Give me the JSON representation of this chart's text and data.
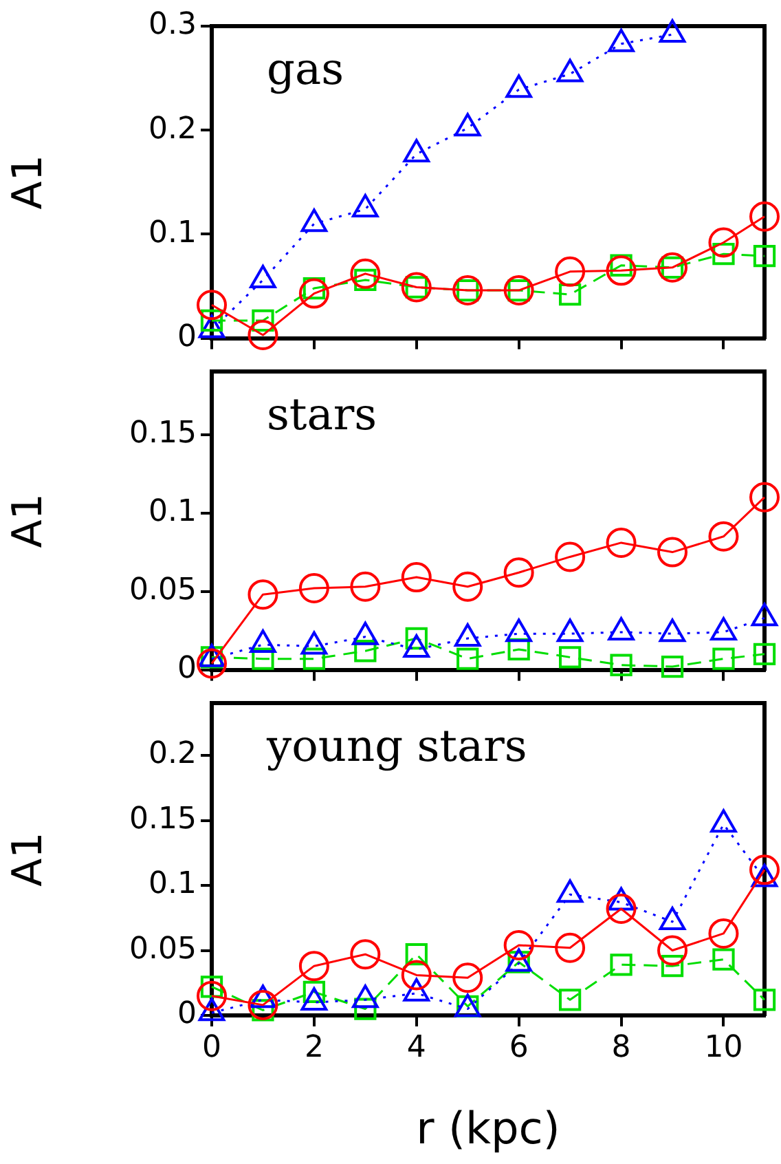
{
  "chart_data": [
    {
      "type": "line",
      "ylabel": "A1",
      "annotations": [
        "gas"
      ],
      "x": [
        0,
        1,
        2,
        3,
        4,
        5,
        6,
        7,
        8,
        9,
        10,
        10.8
      ],
      "xlim": [
        0,
        10.8
      ],
      "xticks": [
        0,
        2,
        4,
        6,
        8,
        10
      ],
      "ylim": [
        0,
        0.3
      ],
      "yticks": [
        0,
        0.1,
        0.2,
        0.3
      ],
      "tick_labels": "y",
      "grid": false,
      "legend": false,
      "series": [
        {
          "color": "#ff0000",
          "marker": "circle",
          "line_style": "solid",
          "values": [
            0.032,
            0.003,
            0.043,
            0.062,
            0.049,
            0.046,
            0.046,
            0.064,
            0.065,
            0.068,
            0.092,
            0.117
          ]
        },
        {
          "color": "#00dd00",
          "marker": "square",
          "line_style": "dashed",
          "values": [
            0.017,
            0.017,
            0.048,
            0.056,
            0.049,
            0.046,
            0.046,
            0.042,
            0.07,
            0.068,
            0.081,
            0.079
          ]
        },
        {
          "color": "#0000ff",
          "marker": "triangle",
          "line_style": "dotted",
          "values": [
            0.008,
            0.056,
            0.11,
            0.124,
            0.177,
            0.202,
            0.239,
            0.254,
            0.283,
            0.292,
            null,
            null
          ]
        }
      ]
    },
    {
      "type": "line",
      "ylabel": "A1",
      "annotations": [
        "stars"
      ],
      "x": [
        0,
        1,
        2,
        3,
        4,
        5,
        6,
        7,
        8,
        9,
        10,
        10.8
      ],
      "xlim": [
        0,
        10.8
      ],
      "xticks": [
        0,
        2,
        4,
        6,
        8,
        10
      ],
      "ylim": [
        0,
        0.19
      ],
      "yticks": [
        0,
        0.05,
        0.1,
        0.15
      ],
      "tick_labels": "y",
      "grid": false,
      "legend": false,
      "series": [
        {
          "color": "#ff0000",
          "marker": "circle",
          "line_style": "solid",
          "values": [
            0.004,
            0.048,
            0.052,
            0.053,
            0.059,
            0.053,
            0.062,
            0.072,
            0.081,
            0.075,
            0.085,
            0.11
          ]
        },
        {
          "color": "#0000ff",
          "marker": "triangle",
          "line_style": "dotted",
          "values": [
            0.007,
            0.016,
            0.015,
            0.021,
            0.013,
            0.02,
            0.023,
            0.023,
            0.024,
            0.023,
            0.024,
            0.033
          ]
        },
        {
          "color": "#00dd00",
          "marker": "square",
          "line_style": "dashed",
          "values": [
            0.008,
            0.007,
            0.007,
            0.012,
            0.02,
            0.007,
            0.013,
            0.008,
            0.003,
            0.002,
            0.007,
            0.01
          ]
        }
      ]
    },
    {
      "type": "line",
      "xlabel": "r (kpc)",
      "ylabel": "A1",
      "annotations": [
        "young stars"
      ],
      "x": [
        0,
        1,
        2,
        3,
        4,
        5,
        6,
        7,
        8,
        9,
        10,
        10.8
      ],
      "xlim": [
        0,
        10.8
      ],
      "xticks": [
        0,
        2,
        4,
        6,
        8,
        10
      ],
      "ylim": [
        0,
        0.24
      ],
      "yticks": [
        0,
        0.05,
        0.1,
        0.15,
        0.2
      ],
      "grid": false,
      "legend": false,
      "series": [
        {
          "color": "#ff0000",
          "marker": "circle",
          "line_style": "solid",
          "values": [
            0.015,
            0.008,
            0.038,
            0.047,
            0.031,
            0.029,
            0.054,
            0.052,
            0.082,
            0.05,
            0.063,
            0.112
          ]
        },
        {
          "color": "#0000ff",
          "marker": "triangle",
          "line_style": "dotted",
          "values": [
            0.002,
            0.012,
            0.01,
            0.012,
            0.017,
            0.005,
            0.04,
            0.093,
            0.087,
            0.072,
            0.147,
            0.105
          ]
        },
        {
          "color": "#00dd00",
          "marker": "square",
          "line_style": "dashed",
          "values": [
            0.022,
            0.004,
            0.018,
            0.005,
            0.047,
            0.007,
            0.041,
            0.012,
            0.039,
            0.038,
            0.043,
            0.012
          ]
        }
      ]
    }
  ]
}
